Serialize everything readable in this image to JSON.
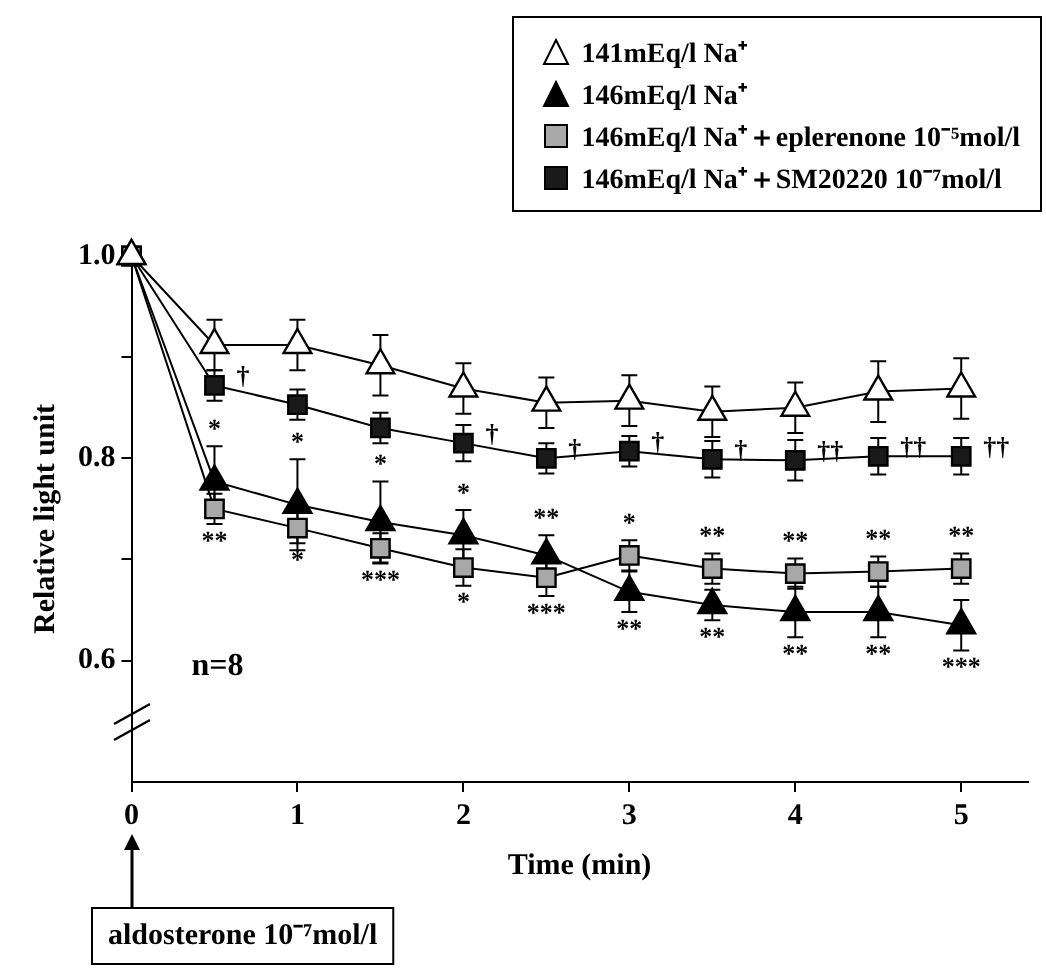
{
  "chart_data": {
    "type": "line",
    "xlabel": "Time (min)",
    "ylabel": "Relative light unit",
    "x": [
      0,
      0.5,
      1,
      1.5,
      2,
      2.5,
      3,
      3.5,
      4,
      4.5,
      5
    ],
    "series": [
      {
        "name": "141mEq/l Na⁺",
        "color": "#ffffff",
        "marker": "triangle",
        "values": [
          1.0,
          0.912,
          0.912,
          0.892,
          0.869,
          0.855,
          0.857,
          0.846,
          0.85,
          0.866,
          0.869
        ],
        "errors": [
          null,
          0.025,
          0.025,
          0.03,
          0.025,
          0.025,
          0.025,
          0.025,
          0.025,
          0.03,
          0.03
        ]
      },
      {
        "name": "146mEq/l Na⁺",
        "color": "#000000",
        "marker": "triangle",
        "values": [
          1.0,
          0.777,
          0.754,
          0.737,
          0.724,
          0.704,
          0.668,
          0.655,
          0.648,
          0.648,
          0.635
        ],
        "errors": [
          null,
          0.035,
          0.045,
          0.04,
          0.025,
          0.02,
          0.02,
          0.015,
          0.025,
          0.025,
          0.025
        ]
      },
      {
        "name": "146mEq/l Na⁺＋eplerenone 10⁻⁵mol/l",
        "color": "#a8a8a8",
        "marker": "square",
        "values": [
          1.0,
          0.75,
          0.731,
          0.711,
          0.692,
          0.682,
          0.704,
          0.691,
          0.686,
          0.688,
          0.691
        ],
        "errors": [
          null,
          0.015,
          0.015,
          0.015,
          0.018,
          0.018,
          0.015,
          0.015,
          0.015,
          0.015,
          0.015
        ]
      },
      {
        "name": "146mEq/l Na⁺＋SM20220 10⁻⁷mol/l",
        "color": "#1a1a1a",
        "marker": "square",
        "values": [
          1.0,
          0.872,
          0.853,
          0.83,
          0.815,
          0.8,
          0.807,
          0.799,
          0.798,
          0.802,
          0.802
        ],
        "errors": [
          null,
          0.015,
          0.015,
          0.015,
          0.018,
          0.015,
          0.015,
          0.018,
          0.02,
          0.018,
          0.018
        ]
      }
    ],
    "xlim": [
      0,
      5.4
    ],
    "xticks": [
      0,
      1,
      2,
      3,
      4,
      5
    ],
    "ylim": [
      0.48,
      1.0
    ],
    "yticks": [
      0.6,
      {
        "value": 0.7,
        "label": null
      },
      0.8,
      {
        "value": 0.9,
        "label": null
      },
      {
        "value": 1,
        "label": "1.0"
      }
    ],
    "grid": false,
    "legend": "top right",
    "annotations": [
      "n=8",
      "aldosterone 10⁻⁷mol/l",
      {
        "text": "*",
        "x": 0.5,
        "y": 0.777
      },
      {
        "text": "*",
        "x": 1,
        "y": 0.754
      },
      {
        "text": "*",
        "x": 1.5,
        "y": 0.737
      },
      {
        "text": "*",
        "x": 2,
        "y": 0.724
      },
      {
        "text": "**",
        "x": 2.5,
        "y": 0.704
      },
      {
        "text": "*",
        "x": 3,
        "y": 0.704
      },
      {
        "text": "**",
        "x": 3.5,
        "y": 0.691
      },
      {
        "text": "**",
        "x": 4,
        "y": 0.686
      },
      {
        "text": "**",
        "x": 4.5,
        "y": 0.688
      },
      {
        "text": "**",
        "x": 5,
        "y": 0.691
      },
      {
        "text": "**",
        "x": 0.5,
        "y": 0.75
      },
      {
        "text": "*",
        "x": 1,
        "y": 0.731
      },
      {
        "text": "***",
        "x": 1.5,
        "y": 0.711
      },
      {
        "text": "*",
        "x": 2,
        "y": 0.692
      },
      {
        "text": "***",
        "x": 2.5,
        "y": 0.682
      },
      {
        "text": "**",
        "x": 3,
        "y": 0.668
      },
      {
        "text": "**",
        "x": 3.5,
        "y": 0.655
      },
      {
        "text": "**",
        "x": 4,
        "y": 0.648
      },
      {
        "text": "**",
        "x": 4.5,
        "y": 0.648
      },
      {
        "text": "***",
        "x": 5,
        "y": 0.635
      },
      {
        "text": "†",
        "x": 0.5,
        "y": 0.872
      },
      {
        "text": "†",
        "x": 2,
        "y": 0.815
      },
      {
        "text": "†",
        "x": 2.5,
        "y": 0.8
      },
      {
        "text": "†",
        "x": 3,
        "y": 0.807
      },
      {
        "text": "†",
        "x": 3.5,
        "y": 0.799
      },
      {
        "text": "††",
        "x": 4,
        "y": 0.798
      },
      {
        "text": "††",
        "x": 4.5,
        "y": 0.802
      },
      {
        "text": "††",
        "x": 5,
        "y": 0.802
      }
    ]
  }
}
